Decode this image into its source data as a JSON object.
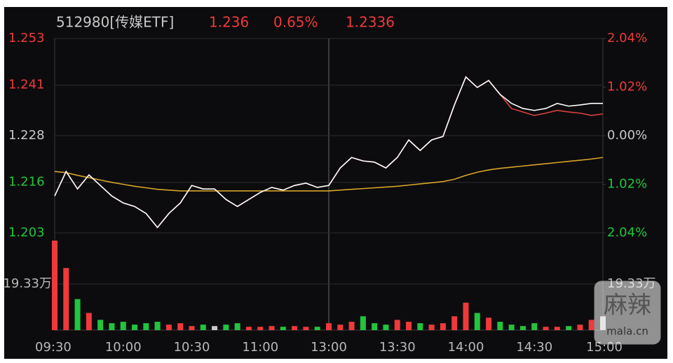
{
  "chart_data": {
    "type": "line",
    "title": "512980[传媒ETF]",
    "header": {
      "price": 1.236,
      "change_pct": {
        "value": 0.65,
        "label": "0.65%"
      },
      "avg": 1.2336
    },
    "categories": [
      "09:30",
      null,
      null,
      null,
      null,
      null,
      "10:00",
      null,
      null,
      null,
      null,
      null,
      "10:30",
      null,
      null,
      null,
      null,
      null,
      "11:00",
      null,
      null,
      null,
      null,
      null,
      "13:00",
      null,
      null,
      null,
      null,
      null,
      "13:30",
      null,
      null,
      null,
      null,
      null,
      "14:00",
      null,
      null,
      null,
      null,
      null,
      "14:30",
      null,
      null,
      null,
      null,
      null,
      "15:00"
    ],
    "series": [
      {
        "color": "#ffffff",
        "values": [
          1.2125,
          1.2188,
          1.2143,
          1.2179,
          1.2152,
          1.2125,
          1.2107,
          1.2098,
          1.208,
          1.2044,
          1.208,
          1.2107,
          1.2152,
          1.2143,
          1.2143,
          1.2116,
          1.2098,
          1.2116,
          1.2134,
          1.2147,
          1.214,
          1.2152,
          1.2158,
          1.2147,
          1.2152,
          1.2197,
          1.2224,
          1.2215,
          1.2212,
          1.2197,
          1.2224,
          1.2269,
          1.2242,
          1.2269,
          1.2278,
          1.2359,
          1.2431,
          1.2404,
          1.2422,
          1.2386,
          1.2363,
          1.235,
          1.2345,
          1.235,
          1.2363,
          1.2356,
          1.2359,
          1.2363,
          1.2363
        ]
      },
      {
        "color": "#d9413f",
        "values": [
          1.2125,
          1.2188,
          1.2143,
          1.2179,
          1.2152,
          1.2125,
          1.2107,
          1.2098,
          1.208,
          1.2044,
          1.208,
          1.2107,
          1.2152,
          1.2143,
          1.2143,
          1.2116,
          1.2098,
          1.2116,
          1.2134,
          1.2147,
          1.214,
          1.2152,
          1.2158,
          1.2147,
          1.2152,
          1.2197,
          1.2224,
          1.2215,
          1.2212,
          1.2197,
          1.2224,
          1.2269,
          1.2242,
          1.2269,
          1.2278,
          1.2359,
          1.2431,
          1.2404,
          1.2422,
          1.2386,
          1.235,
          1.2341,
          1.2332,
          1.2338,
          1.2345,
          1.2341,
          1.2338,
          1.2332,
          1.2336
        ]
      },
      {
        "color": "#d6a42a",
        "values": [
          1.2188,
          1.2185,
          1.2178,
          1.2172,
          1.2166,
          1.216,
          1.2155,
          1.215,
          1.2146,
          1.2142,
          1.214,
          1.2138,
          1.2138,
          1.2138,
          1.2138,
          1.2138,
          1.2138,
          1.2138,
          1.2138,
          1.2138,
          1.2138,
          1.2138,
          1.2138,
          1.2138,
          1.2138,
          1.214,
          1.2142,
          1.2144,
          1.2146,
          1.2148,
          1.215,
          1.2153,
          1.2156,
          1.2159,
          1.2162,
          1.2168,
          1.2178,
          1.2186,
          1.2192,
          1.2196,
          1.2199,
          1.2202,
          1.2205,
          1.2208,
          1.2211,
          1.2214,
          1.2217,
          1.222,
          1.2224
        ]
      }
    ],
    "ylim": [
      1.203,
      1.253
    ],
    "yticks": [
      1.253,
      1.241,
      1.228,
      1.216,
      1.203
    ],
    "y2lim": [
      -2.04,
      2.04
    ],
    "y2ticks": [
      {
        "value": 2.04,
        "label": "2.04%"
      },
      {
        "value": 1.02,
        "label": "1.02%"
      },
      {
        "value": 0,
        "label": "0.00%"
      },
      {
        "value": -1.02,
        "label": "1.02%"
      },
      {
        "value": -2.04,
        "label": "2.04%"
      }
    ],
    "grid": true,
    "up_color": "#f0393b",
    "down_color": "#22c43e",
    "flat_color": "#c8c8c8",
    "volume": {
      "values": [
        375000,
        260000,
        130000,
        72000,
        43000,
        29000,
        35000,
        23000,
        29000,
        35000,
        23000,
        29000,
        17000,
        23000,
        17000,
        23000,
        29000,
        14000,
        14000,
        17000,
        14000,
        17000,
        14000,
        14000,
        29000,
        23000,
        35000,
        58000,
        29000,
        23000,
        43000,
        35000,
        29000,
        23000,
        29000,
        58000,
        115000,
        72000,
        52000,
        35000,
        23000,
        17000,
        29000,
        14000,
        14000,
        17000,
        23000,
        43000,
        58000
      ],
      "ylim": [
        0,
        386600
      ],
      "yticks": [
        {
          "value": 193300,
          "label": "19.33万"
        }
      ]
    },
    "watermark": [
      "麻辣",
      "mala.cn"
    ]
  }
}
